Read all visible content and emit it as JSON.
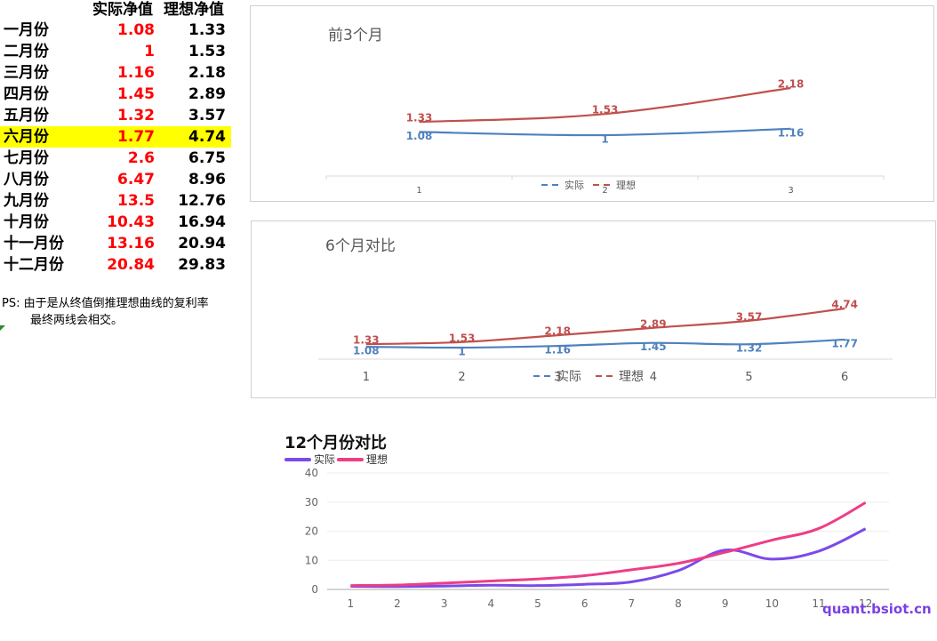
{
  "table": {
    "header_actual": "实际净值",
    "header_ideal": "理想净值",
    "rows": [
      {
        "label": "一月份",
        "actual": "1.08",
        "ideal": "1.33"
      },
      {
        "label": "二月份",
        "actual": "1",
        "ideal": "1.53"
      },
      {
        "label": "三月份",
        "actual": "1.16",
        "ideal": "2.18"
      },
      {
        "label": "四月份",
        "actual": "1.45",
        "ideal": "2.89"
      },
      {
        "label": "五月份",
        "actual": "1.32",
        "ideal": "3.57"
      },
      {
        "label": "六月份",
        "actual": "1.77",
        "ideal": "4.74"
      },
      {
        "label": "七月份",
        "actual": "2.6",
        "ideal": "6.75"
      },
      {
        "label": "八月份",
        "actual": "6.47",
        "ideal": "8.96"
      },
      {
        "label": "九月份",
        "actual": "13.5",
        "ideal": "12.76"
      },
      {
        "label": "十月份",
        "actual": "10.43",
        "ideal": "16.94"
      },
      {
        "label": "十一月份",
        "actual": "13.16",
        "ideal": "20.94"
      },
      {
        "label": "十二月份",
        "actual": "20.84",
        "ideal": "29.83"
      }
    ],
    "highlight_row": 5,
    "highlight_color": "#ffff00",
    "actual_color": "#ff0000"
  },
  "note": {
    "line1": "PS:  由于是从终值倒推理想曲线的复利率",
    "line2": "最终两线会相交。"
  },
  "watermark": "quant.bsiot.cn",
  "chart_data": [
    {
      "type": "line",
      "title": "前3个月",
      "x": [
        1,
        2,
        3
      ],
      "series": [
        {
          "name": "实际",
          "values": [
            1.08,
            1,
            1.16
          ],
          "color": "#4f81bd"
        },
        {
          "name": "理想",
          "values": [
            1.33,
            1.53,
            2.18
          ],
          "color": "#c0504d"
        }
      ],
      "data_labels": true,
      "legend": "bottom",
      "grid": false
    },
    {
      "type": "line",
      "title": "6个月对比",
      "x": [
        1,
        2,
        3,
        4,
        5,
        6
      ],
      "series": [
        {
          "name": "实际",
          "values": [
            1.08,
            1,
            1.16,
            1.45,
            1.32,
            1.77
          ],
          "color": "#4f81bd"
        },
        {
          "name": "理想",
          "values": [
            1.33,
            1.53,
            2.18,
            2.89,
            3.57,
            4.74
          ],
          "color": "#c0504d"
        }
      ],
      "data_labels": true,
      "legend": "bottom",
      "grid": false
    },
    {
      "type": "line",
      "title": "12个月份对比",
      "x": [
        1,
        2,
        3,
        4,
        5,
        6,
        7,
        8,
        9,
        10,
        11,
        12
      ],
      "series": [
        {
          "name": "实际",
          "values": [
            1.08,
            1,
            1.16,
            1.45,
            1.32,
            1.77,
            2.6,
            6.47,
            13.5,
            10.43,
            13.16,
            20.84
          ],
          "color": "#7b4ae8"
        },
        {
          "name": "理想",
          "values": [
            1.33,
            1.53,
            2.18,
            2.89,
            3.57,
            4.74,
            6.75,
            8.96,
            12.76,
            16.94,
            20.94,
            29.83
          ],
          "color": "#ee3d87"
        }
      ],
      "yticks": [
        0,
        10,
        20,
        30,
        40
      ],
      "ylim": [
        0,
        40
      ],
      "legend": "top-left",
      "grid": true
    }
  ]
}
